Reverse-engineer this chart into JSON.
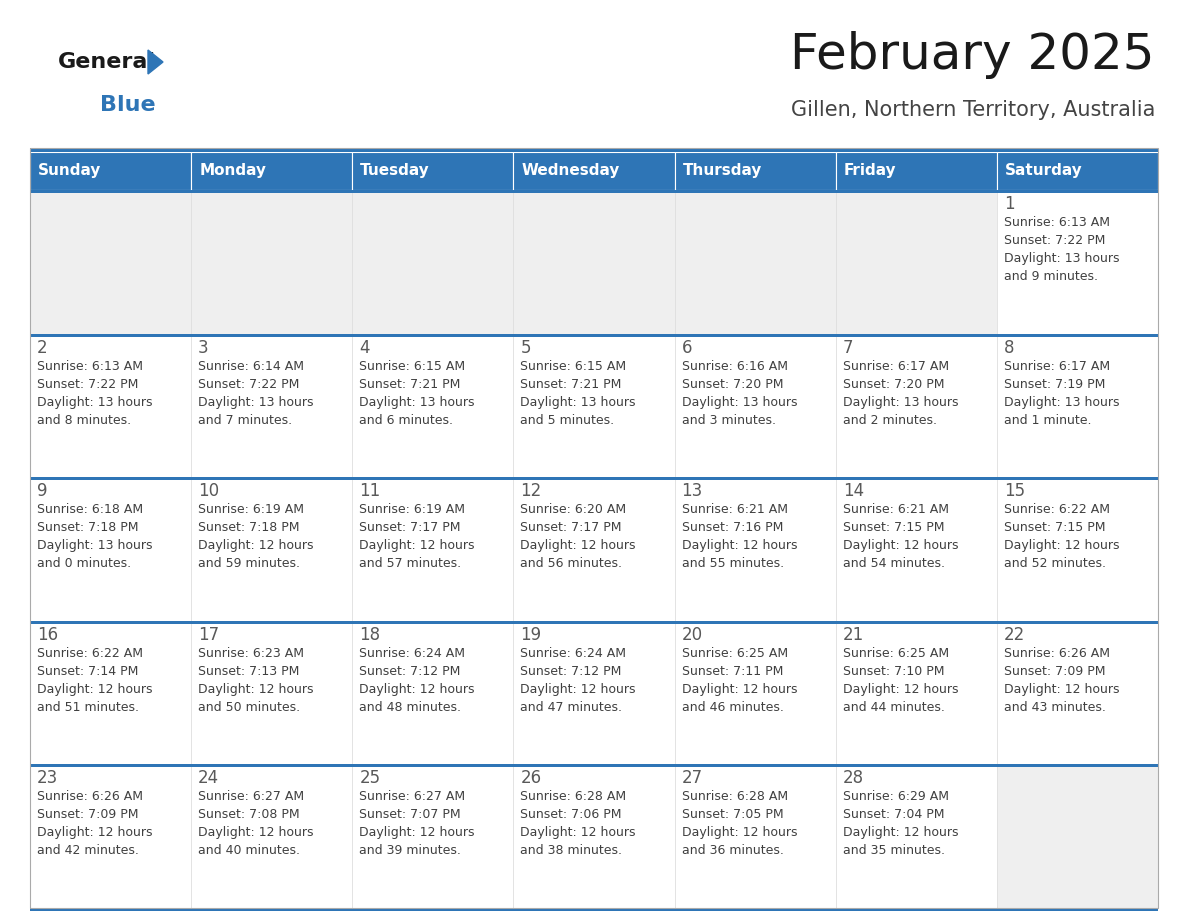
{
  "title": "February 2025",
  "subtitle": "Gillen, Northern Territory, Australia",
  "days_of_week": [
    "Sunday",
    "Monday",
    "Tuesday",
    "Wednesday",
    "Thursday",
    "Friday",
    "Saturday"
  ],
  "header_bg": "#2E75B6",
  "header_text": "#FFFFFF",
  "cell_bg_white": "#FFFFFF",
  "cell_bg_gray": "#EFEFEF",
  "day_num_color": "#595959",
  "text_color": "#404040",
  "border_color": "#2E75B6",
  "sep_line_color": "#2E75B6",
  "title_color": "#1a1a1a",
  "subtitle_color": "#444444",
  "logo_general_color": "#1a1a1a",
  "logo_blue_color": "#2E75B6",
  "calendar_data": [
    [
      {
        "day": null,
        "sunrise": null,
        "sunset": null,
        "daylight": null
      },
      {
        "day": null,
        "sunrise": null,
        "sunset": null,
        "daylight": null
      },
      {
        "day": null,
        "sunrise": null,
        "sunset": null,
        "daylight": null
      },
      {
        "day": null,
        "sunrise": null,
        "sunset": null,
        "daylight": null
      },
      {
        "day": null,
        "sunrise": null,
        "sunset": null,
        "daylight": null
      },
      {
        "day": null,
        "sunrise": null,
        "sunset": null,
        "daylight": null
      },
      {
        "day": 1,
        "sunrise": "6:13 AM",
        "sunset": "7:22 PM",
        "daylight": "13 hours\nand 9 minutes."
      }
    ],
    [
      {
        "day": 2,
        "sunrise": "6:13 AM",
        "sunset": "7:22 PM",
        "daylight": "13 hours\nand 8 minutes."
      },
      {
        "day": 3,
        "sunrise": "6:14 AM",
        "sunset": "7:22 PM",
        "daylight": "13 hours\nand 7 minutes."
      },
      {
        "day": 4,
        "sunrise": "6:15 AM",
        "sunset": "7:21 PM",
        "daylight": "13 hours\nand 6 minutes."
      },
      {
        "day": 5,
        "sunrise": "6:15 AM",
        "sunset": "7:21 PM",
        "daylight": "13 hours\nand 5 minutes."
      },
      {
        "day": 6,
        "sunrise": "6:16 AM",
        "sunset": "7:20 PM",
        "daylight": "13 hours\nand 3 minutes."
      },
      {
        "day": 7,
        "sunrise": "6:17 AM",
        "sunset": "7:20 PM",
        "daylight": "13 hours\nand 2 minutes."
      },
      {
        "day": 8,
        "sunrise": "6:17 AM",
        "sunset": "7:19 PM",
        "daylight": "13 hours\nand 1 minute."
      }
    ],
    [
      {
        "day": 9,
        "sunrise": "6:18 AM",
        "sunset": "7:18 PM",
        "daylight": "13 hours\nand 0 minutes."
      },
      {
        "day": 10,
        "sunrise": "6:19 AM",
        "sunset": "7:18 PM",
        "daylight": "12 hours\nand 59 minutes."
      },
      {
        "day": 11,
        "sunrise": "6:19 AM",
        "sunset": "7:17 PM",
        "daylight": "12 hours\nand 57 minutes."
      },
      {
        "day": 12,
        "sunrise": "6:20 AM",
        "sunset": "7:17 PM",
        "daylight": "12 hours\nand 56 minutes."
      },
      {
        "day": 13,
        "sunrise": "6:21 AM",
        "sunset": "7:16 PM",
        "daylight": "12 hours\nand 55 minutes."
      },
      {
        "day": 14,
        "sunrise": "6:21 AM",
        "sunset": "7:15 PM",
        "daylight": "12 hours\nand 54 minutes."
      },
      {
        "day": 15,
        "sunrise": "6:22 AM",
        "sunset": "7:15 PM",
        "daylight": "12 hours\nand 52 minutes."
      }
    ],
    [
      {
        "day": 16,
        "sunrise": "6:22 AM",
        "sunset": "7:14 PM",
        "daylight": "12 hours\nand 51 minutes."
      },
      {
        "day": 17,
        "sunrise": "6:23 AM",
        "sunset": "7:13 PM",
        "daylight": "12 hours\nand 50 minutes."
      },
      {
        "day": 18,
        "sunrise": "6:24 AM",
        "sunset": "7:12 PM",
        "daylight": "12 hours\nand 48 minutes."
      },
      {
        "day": 19,
        "sunrise": "6:24 AM",
        "sunset": "7:12 PM",
        "daylight": "12 hours\nand 47 minutes."
      },
      {
        "day": 20,
        "sunrise": "6:25 AM",
        "sunset": "7:11 PM",
        "daylight": "12 hours\nand 46 minutes."
      },
      {
        "day": 21,
        "sunrise": "6:25 AM",
        "sunset": "7:10 PM",
        "daylight": "12 hours\nand 44 minutes."
      },
      {
        "day": 22,
        "sunrise": "6:26 AM",
        "sunset": "7:09 PM",
        "daylight": "12 hours\nand 43 minutes."
      }
    ],
    [
      {
        "day": 23,
        "sunrise": "6:26 AM",
        "sunset": "7:09 PM",
        "daylight": "12 hours\nand 42 minutes."
      },
      {
        "day": 24,
        "sunrise": "6:27 AM",
        "sunset": "7:08 PM",
        "daylight": "12 hours\nand 40 minutes."
      },
      {
        "day": 25,
        "sunrise": "6:27 AM",
        "sunset": "7:07 PM",
        "daylight": "12 hours\nand 39 minutes."
      },
      {
        "day": 26,
        "sunrise": "6:28 AM",
        "sunset": "7:06 PM",
        "daylight": "12 hours\nand 38 minutes."
      },
      {
        "day": 27,
        "sunrise": "6:28 AM",
        "sunset": "7:05 PM",
        "daylight": "12 hours\nand 36 minutes."
      },
      {
        "day": 28,
        "sunrise": "6:29 AM",
        "sunset": "7:04 PM",
        "daylight": "12 hours\nand 35 minutes."
      },
      {
        "day": null,
        "sunrise": null,
        "sunset": null,
        "daylight": null
      }
    ]
  ],
  "fig_width": 11.88,
  "fig_height": 9.18,
  "dpi": 100
}
